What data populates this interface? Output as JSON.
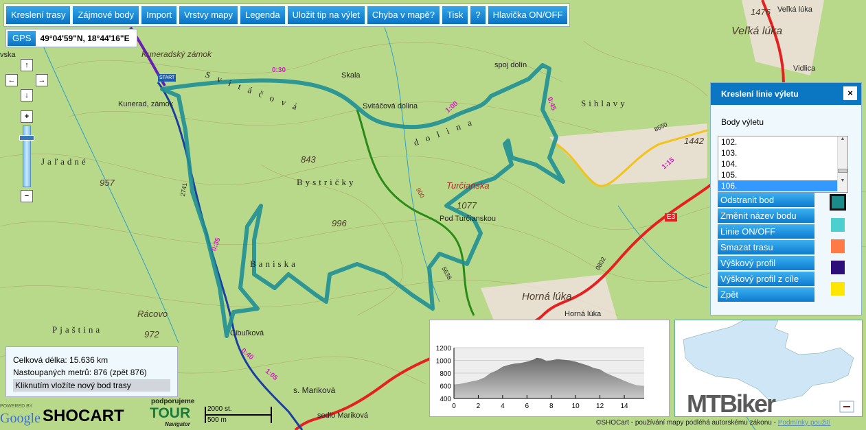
{
  "toolbar": {
    "buttons": [
      "Kreslení trasy",
      "Zájmové body",
      "Import",
      "Vrstvy mapy",
      "Legenda",
      "Uložit tip na výlet",
      "Chyba v mapě?",
      "Tisk",
      "?",
      "Hlavička ON/OFF"
    ]
  },
  "gps": {
    "label": "GPS",
    "value": "49°04'59\"N, 18°44'16\"E"
  },
  "nav": {
    "up": "↑",
    "left": "←",
    "right": "→",
    "down": "↓",
    "zoom_in": "+",
    "zoom_out": "−"
  },
  "map_labels": {
    "kuneradsky": "Kuneradský zámok",
    "kunerad": "Kunerad, zámok",
    "skala": "Skala",
    "svitacova": "Svitáčová dolina",
    "svitacova_big": "S v i t á č o v á",
    "dolina": "d o l i n a",
    "spoj": "spoj dolín",
    "sihlavy": "Sihlavy",
    "velka_luka": "Veľká lúka",
    "velka_luka2": "Veľká lúka",
    "vidlica": "Vidlica",
    "e1476": "1476",
    "e1442": "1442",
    "e843": "843",
    "bystricky": "Bystričky",
    "e996": "996",
    "turcianska": "Turčianska",
    "e1077": "1077",
    "pod_turc": "Pod Turčianskou",
    "baniska": "Baniska",
    "e957": "957",
    "jaladne": "Jaľadné",
    "racovo": "Rácovo",
    "e972": "972",
    "pjastina": "Pjaština",
    "cibulkova": "Cibuľková",
    "s_marikova": "s. Mariková",
    "sedlo": "sedlo Mariková",
    "horna_luka": "Horná lúka",
    "horna_luka2": "Horná lúka",
    "vska": "vska",
    "e3": "E3",
    "start": "START",
    "t030": "0:30",
    "t100": "1:00",
    "t045": "0:45",
    "t035": "0:35",
    "t040": "0:40",
    "t105": "1:05",
    "t115": "1:15",
    "n8650": "8650",
    "n2741": "2741",
    "n900": "900",
    "n5638": "5638",
    "n0802": "0802"
  },
  "panel": {
    "title": "Kreslení linie výletu",
    "close": "×",
    "subtitle": "Body výletu",
    "points": [
      "102.",
      "103.",
      "104.",
      "105.",
      "106."
    ],
    "selected": "106.",
    "buttons": [
      "Odstranit bod",
      "Změnit název bodu",
      "Linie ON/OFF",
      "Smazat trasu",
      "Výškový profil",
      "Výškový profil z cíle",
      "Zpět"
    ],
    "colors": [
      "#1a8a8a",
      "#4ecfcf",
      "#ff7a45",
      "#2e0f7a",
      "#ffe600"
    ],
    "selected_color": "#1a8a8a"
  },
  "info": {
    "length": "Celková délka: 15.636 km",
    "climb": "Nastoupaných metrů: 876 (zpět 876)",
    "hint": "Kliknutím vložíte nový bod trasy"
  },
  "scale": {
    "top": "2000 st.",
    "bottom": "500 m"
  },
  "logos": {
    "powered": "POWERED BY",
    "google": "Google",
    "shocart": "SHOCART",
    "podporujeme": "podporujeme",
    "tour": "TOUR",
    "navigator": "Navigator",
    "mtbiker": "MTBiker"
  },
  "footer": {
    "copyright": "©SHOCart - používání mapy podléhá autorskému zákonu - ",
    "terms": "Podmínky použití"
  },
  "route_color": "#1f8f94",
  "chart_data": {
    "type": "area",
    "xlim": [
      0,
      15.636
    ],
    "ylim": [
      400,
      1200
    ],
    "xticks": [
      0,
      2,
      4,
      6,
      8,
      10,
      12,
      14
    ],
    "yticks": [
      400,
      600,
      800,
      1000,
      1200
    ],
    "grid": true,
    "x": [
      0,
      0.5,
      1,
      1.5,
      2,
      2.5,
      3,
      3.5,
      4,
      4.5,
      5,
      5.5,
      6,
      6.5,
      6.8,
      7.2,
      7.6,
      8,
      8.5,
      9,
      9.5,
      10,
      10.5,
      11,
      11.5,
      12,
      12.5,
      13,
      13.5,
      14,
      14.5,
      15,
      15.636
    ],
    "y": [
      620,
      630,
      650,
      670,
      690,
      730,
      800,
      840,
      900,
      930,
      950,
      960,
      980,
      1010,
      1040,
      1030,
      990,
      1000,
      1020,
      1010,
      1000,
      980,
      950,
      920,
      880,
      860,
      800,
      760,
      720,
      680,
      640,
      610,
      590
    ]
  }
}
